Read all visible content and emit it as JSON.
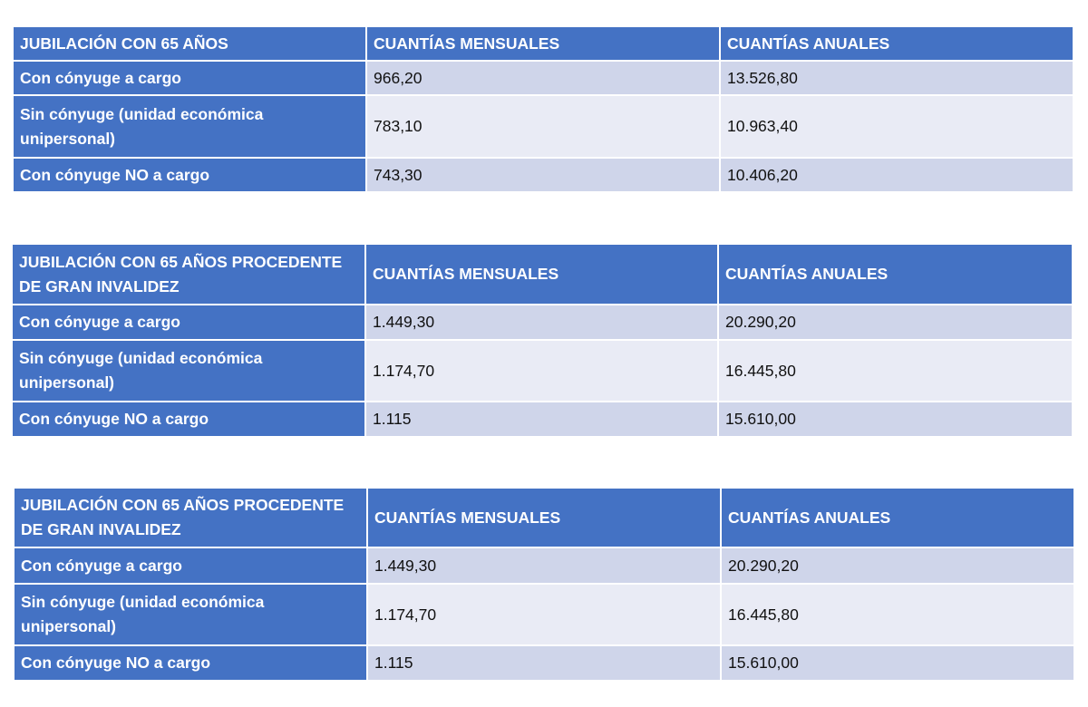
{
  "colors": {
    "header": "#4472C4",
    "row_odd": "#CFD5EA",
    "row_even": "#E9EBF5"
  },
  "tables": [
    {
      "headers": [
        "JUBILACIÓN CON 65 AÑOS",
        "CUANTÍAS MENSUALES",
        "CUANTÍAS ANUALES"
      ],
      "rows": [
        {
          "label": "Con cónyuge a cargo",
          "monthly": "966,20",
          "annual": "13.526,80"
        },
        {
          "label": "Sin cónyuge (unidad económica unipersonal)",
          "monthly": "783,10",
          "annual": "10.963,40"
        },
        {
          "label": "Con cónyuge NO a cargo",
          "monthly": "743,30",
          "annual": "10.406,20"
        }
      ]
    },
    {
      "headers": [
        "JUBILACIÓN CON 65 AÑOS PROCEDENTE DE GRAN INVALIDEZ",
        "CUANTÍAS MENSUALES",
        "CUANTÍAS ANUALES"
      ],
      "rows": [
        {
          "label": "Con cónyuge a cargo",
          "monthly": "1.449,30",
          "annual": "20.290,20"
        },
        {
          "label": "Sin cónyuge (unidad económica unipersonal)",
          "monthly": "1.174,70",
          "annual": "16.445,80"
        },
        {
          "label": "Con cónyuge NO a cargo",
          "monthly": "1.115",
          "annual": "15.610,00"
        }
      ]
    },
    {
      "headers": [
        "JUBILACIÓN CON 65 AÑOS PROCEDENTE DE GRAN INVALIDEZ",
        "CUANTÍAS MENSUALES",
        "CUANTÍAS ANUALES"
      ],
      "rows": [
        {
          "label": "Con cónyuge a cargo",
          "monthly": "1.449,30",
          "annual": "20.290,20"
        },
        {
          "label": "Sin cónyuge (unidad económica unipersonal)",
          "monthly": "1.174,70",
          "annual": "16.445,80"
        },
        {
          "label": "Con cónyuge NO a cargo",
          "monthly": "1.115",
          "annual": "15.610,00"
        }
      ]
    }
  ]
}
